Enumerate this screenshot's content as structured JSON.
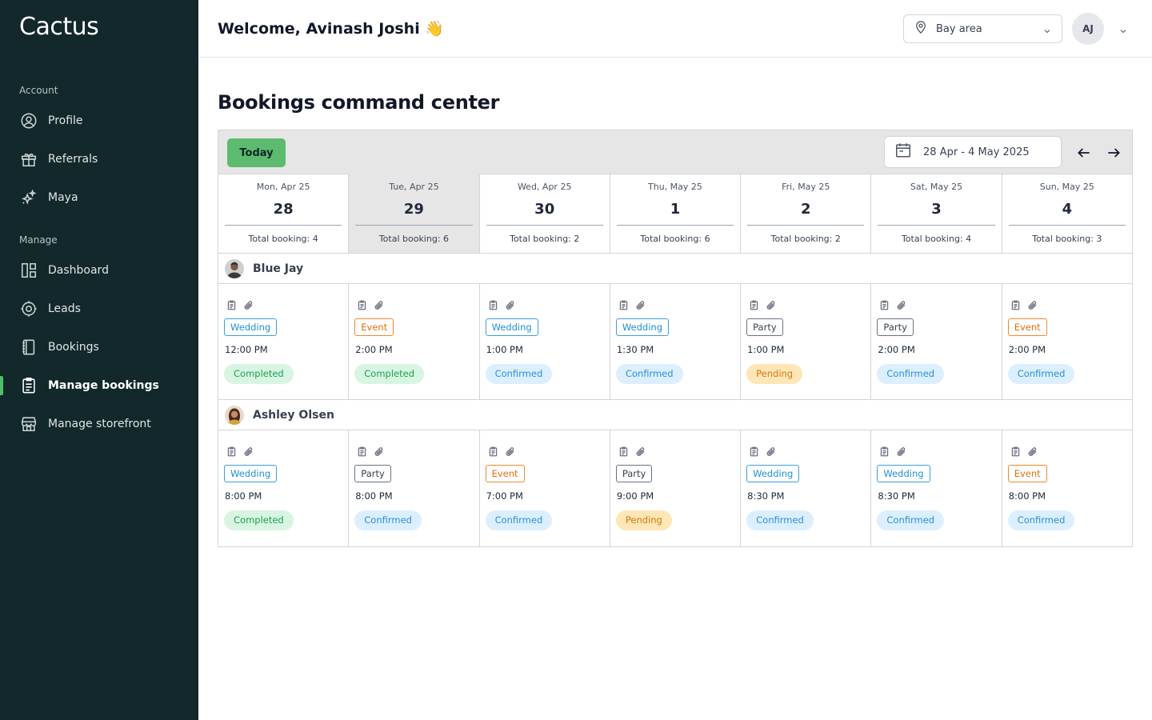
{
  "app": {
    "logo": "Cactus"
  },
  "sidebar": {
    "account_label": "Account",
    "manage_label": "Manage",
    "account_items": [
      {
        "label": "Profile",
        "icon": "user-circle-icon"
      },
      {
        "label": "Referrals",
        "icon": "gift-icon"
      },
      {
        "label": "Maya",
        "icon": "sparkles-icon"
      }
    ],
    "manage_items": [
      {
        "label": "Dashboard",
        "icon": "dashboard-icon"
      },
      {
        "label": "Leads",
        "icon": "target-icon"
      },
      {
        "label": "Bookings",
        "icon": "book-icon"
      },
      {
        "label": "Manage bookings",
        "icon": "clipboard-icon",
        "active": true
      },
      {
        "label": "Manage storefront",
        "icon": "storefront-icon"
      }
    ]
  },
  "header": {
    "welcome": "Welcome, Avinash Joshi 👋",
    "location": "Bay area",
    "avatar_initials": "AJ"
  },
  "page": {
    "title": "Bookings command center"
  },
  "toolbar": {
    "today_label": "Today",
    "date_range": "28 Apr - 4 May 2025"
  },
  "days": [
    {
      "name": "Mon, Apr 25",
      "num": "28",
      "total": "Total booking: 4"
    },
    {
      "name": "Tue, Apr 25",
      "num": "29",
      "total": "Total booking: 6",
      "selected": true
    },
    {
      "name": "Wed, Apr 25",
      "num": "30",
      "total": "Total booking: 2"
    },
    {
      "name": "Thu, May 25",
      "num": "1",
      "total": "Total booking: 6"
    },
    {
      "name": "Fri, May 25",
      "num": "2",
      "total": "Total booking: 2"
    },
    {
      "name": "Sat, May 25",
      "num": "3",
      "total": "Total booking: 4"
    },
    {
      "name": "Sun, May 25",
      "num": "4",
      "total": "Total booking: 3"
    }
  ],
  "colors": {
    "sidebar_bg": "#12282a",
    "accent_green": "#5cbb6e",
    "wedding": "#1f8fd6",
    "event": "#e0700e",
    "party": "#374151"
  },
  "vendors": [
    {
      "name": "Blue Jay",
      "bookings": [
        {
          "type": "Wedding",
          "kind": "wedding",
          "time": "12:00 PM",
          "status": "Completed",
          "state": "completed"
        },
        {
          "type": "Event",
          "kind": "event",
          "time": "2:00 PM",
          "status": "Completed",
          "state": "completed"
        },
        {
          "type": "Wedding",
          "kind": "wedding",
          "time": "1:00 PM",
          "status": "Confirmed",
          "state": "confirmed"
        },
        {
          "type": "Wedding",
          "kind": "wedding",
          "time": "1:30 PM",
          "status": "Confirmed",
          "state": "confirmed"
        },
        {
          "type": "Party",
          "kind": "party",
          "time": "1:00 PM",
          "status": "Pending",
          "state": "pending"
        },
        {
          "type": "Party",
          "kind": "party",
          "time": "2:00 PM",
          "status": "Confirmed",
          "state": "confirmed"
        },
        {
          "type": "Event",
          "kind": "event",
          "time": "2:00 PM",
          "status": "Confirmed",
          "state": "confirmed"
        }
      ]
    },
    {
      "name": "Ashley Olsen",
      "bookings": [
        {
          "type": "Wedding",
          "kind": "wedding",
          "time": "8:00 PM",
          "status": "Completed",
          "state": "completed"
        },
        {
          "type": "Party",
          "kind": "party",
          "time": "8:00 PM",
          "status": "Confirmed",
          "state": "confirmed"
        },
        {
          "type": "Event",
          "kind": "event",
          "time": "7:00 PM",
          "status": "Confirmed",
          "state": "confirmed"
        },
        {
          "type": "Party",
          "kind": "party",
          "time": "9:00 PM",
          "status": "Pending",
          "state": "pending"
        },
        {
          "type": "Wedding",
          "kind": "wedding",
          "time": "8:30 PM",
          "status": "Confirmed",
          "state": "confirmed"
        },
        {
          "type": "Wedding",
          "kind": "wedding",
          "time": "8:30 PM",
          "status": "Confirmed",
          "state": "confirmed"
        },
        {
          "type": "Event",
          "kind": "event",
          "time": "8:00 PM",
          "status": "Confirmed",
          "state": "confirmed"
        }
      ]
    }
  ]
}
